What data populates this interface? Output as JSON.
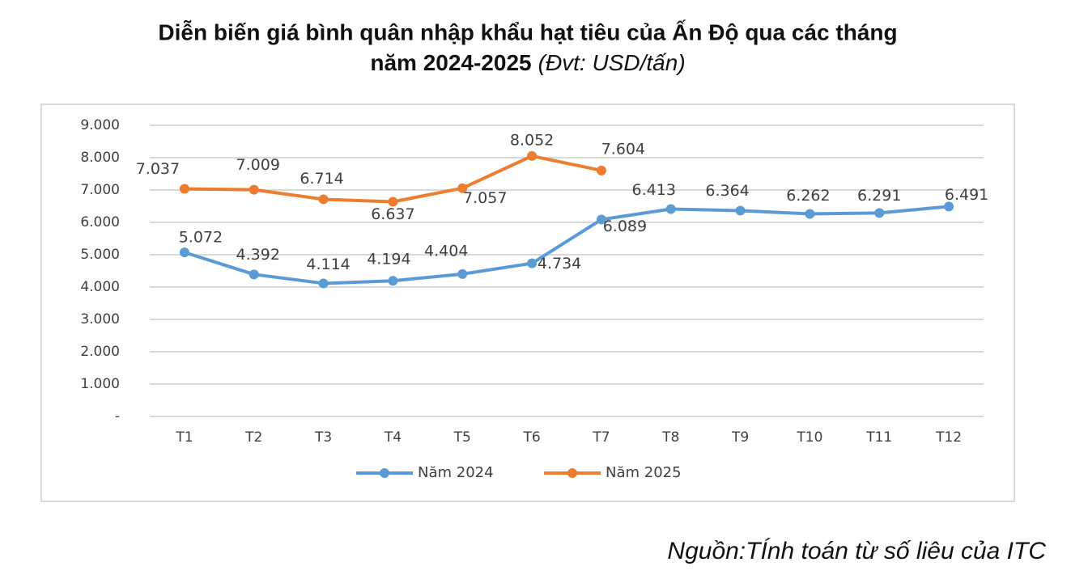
{
  "chart_data": {
    "type": "line",
    "title": [
      "Diễn biến giá bình quân nhập khẩu hạt tiêu của Ấn Độ qua các tháng",
      "năm 2024-2025"
    ],
    "unit": "(Đvt: USD/tấn)",
    "source": "Nguồn:TÍnh toán từ số liêu của  ITC",
    "categories": [
      "T1",
      "T2",
      "T3",
      "T4",
      "T5",
      "T6",
      "T7",
      "T8",
      "T9",
      "T10",
      "T11",
      "T12"
    ],
    "series": [
      {
        "name": "Năm 2024",
        "color": "#5b9bd5",
        "values": [
          5072,
          4392,
          4114,
          4194,
          4404,
          4734,
          6089,
          6413,
          6364,
          6262,
          6291,
          6491
        ],
        "value_labels": [
          "5.072",
          "4.392",
          "4.114",
          "4.194",
          "4.404",
          "4.734",
          "6.089",
          "6.413",
          "6.364",
          "6.262",
          "6.291",
          "6.491"
        ]
      },
      {
        "name": "Năm 2025",
        "color": "#ed7d31",
        "values": [
          7037,
          7009,
          6714,
          6637,
          7057,
          8052,
          7604,
          null,
          null,
          null,
          null,
          null
        ],
        "value_labels": [
          "7.037",
          "7.009",
          "6.714",
          "6.637",
          "7.057",
          "8.052",
          "7.604",
          null,
          null,
          null,
          null,
          null
        ]
      }
    ],
    "ylim": [
      0,
      9000
    ],
    "yticks": [
      {
        "value": 0,
        "label": "-"
      },
      {
        "value": 1000,
        "label": "1.000"
      },
      {
        "value": 2000,
        "label": "2.000"
      },
      {
        "value": 3000,
        "label": "3.000"
      },
      {
        "value": 4000,
        "label": "4.000"
      },
      {
        "value": 5000,
        "label": "5.000"
      },
      {
        "value": 6000,
        "label": "6.000"
      },
      {
        "value": 7000,
        "label": "7.000"
      },
      {
        "value": 8000,
        "label": "8.000"
      },
      {
        "value": 9000,
        "label": "9.000"
      }
    ],
    "grid": true,
    "legend": "bottom"
  }
}
